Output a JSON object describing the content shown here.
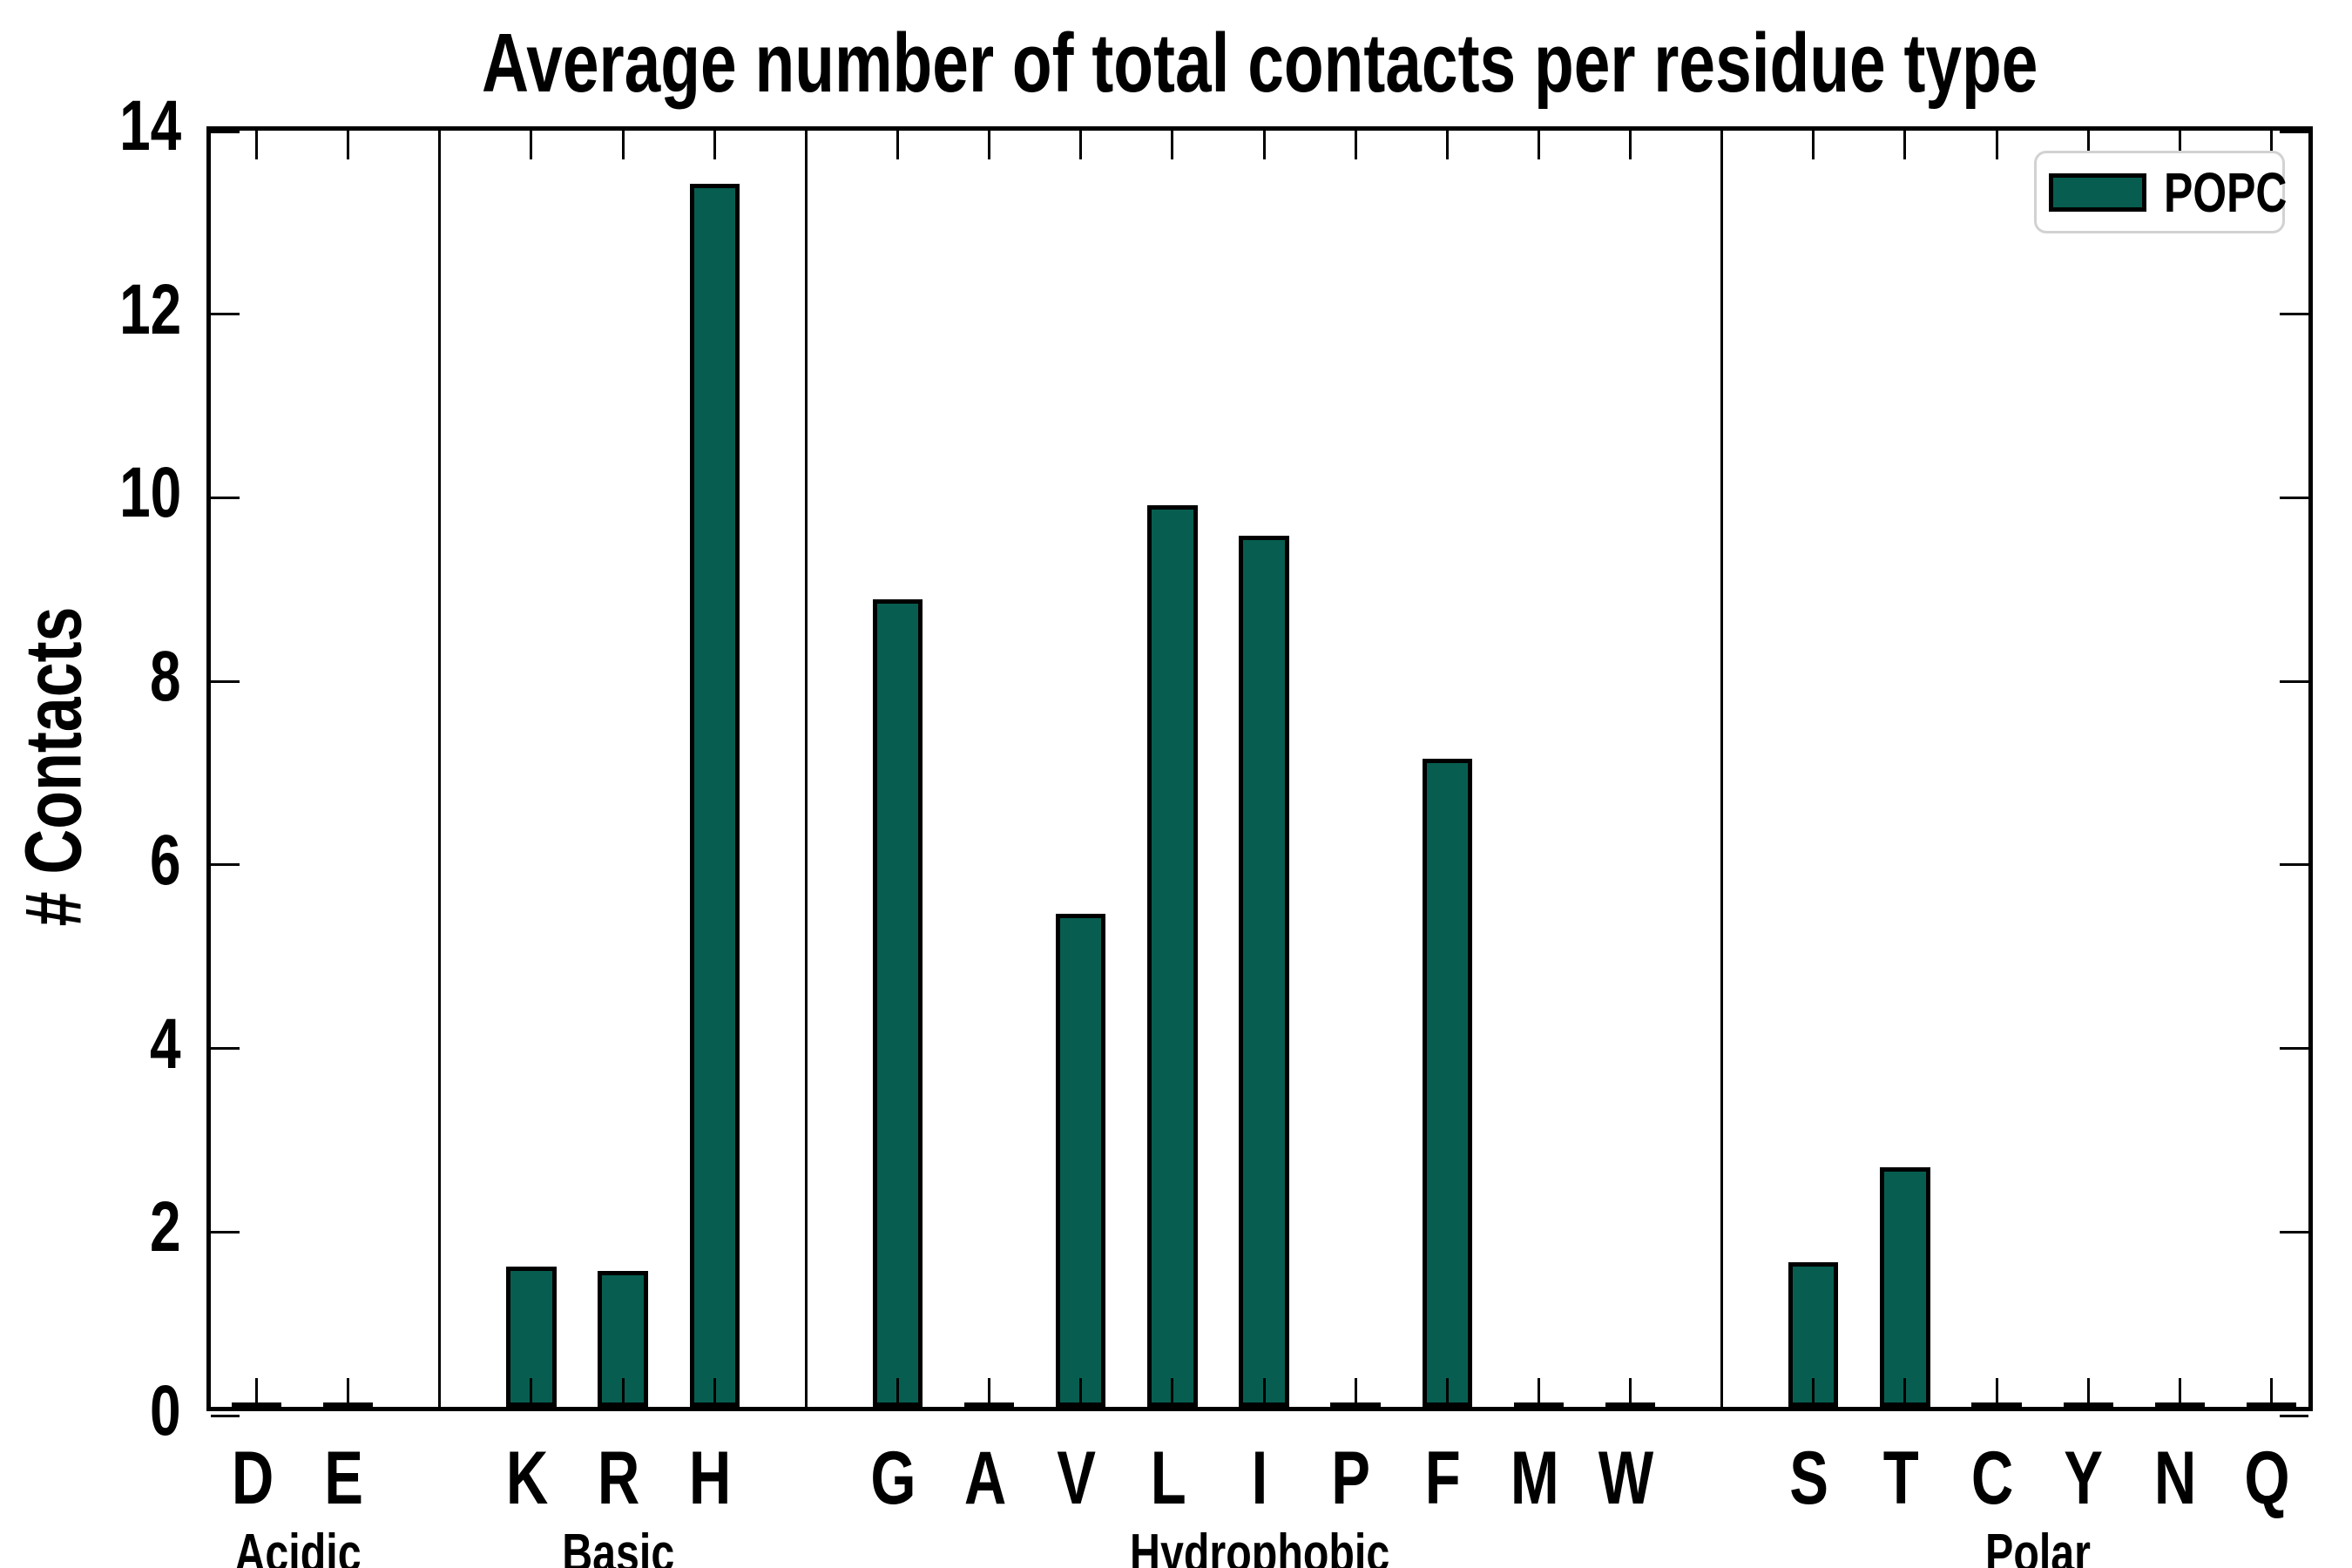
{
  "chart_data": {
    "type": "bar",
    "title": "Average number of total contacts per residue type",
    "xlabel": "",
    "ylabel": "# Contacts",
    "ylim": [
      0,
      14
    ],
    "yticks": [
      0,
      2,
      4,
      6,
      8,
      10,
      12,
      14
    ],
    "grid": false,
    "legend": {
      "position": "upper right",
      "entries": [
        {
          "label": "POPC",
          "color": "#075e50"
        }
      ]
    },
    "bar_color": "#075e50",
    "bar_edge_color": "#000000",
    "groups": [
      {
        "label": "Acidic",
        "categories": [
          "D",
          "E"
        ],
        "values": [
          0,
          0
        ]
      },
      {
        "label": "Basic",
        "categories": [
          "K",
          "R",
          "H"
        ],
        "values": [
          1.53,
          1.48,
          13.33
        ]
      },
      {
        "label": "Hydrophobic",
        "categories": [
          "G",
          "A",
          "V",
          "L",
          "I",
          "P",
          "F",
          "M",
          "W"
        ],
        "values": [
          8.8,
          0,
          5.37,
          9.82,
          9.49,
          0,
          7.06,
          0,
          0
        ]
      },
      {
        "label": "Polar",
        "categories": [
          "S",
          "T",
          "C",
          "Y",
          "N",
          "Q"
        ],
        "values": [
          1.58,
          2.61,
          0,
          0,
          0,
          0
        ]
      }
    ]
  },
  "colors": {
    "background": "#ffffff",
    "axis": "#000000",
    "text": "#000000",
    "legend_border": "#d2d2d2"
  }
}
